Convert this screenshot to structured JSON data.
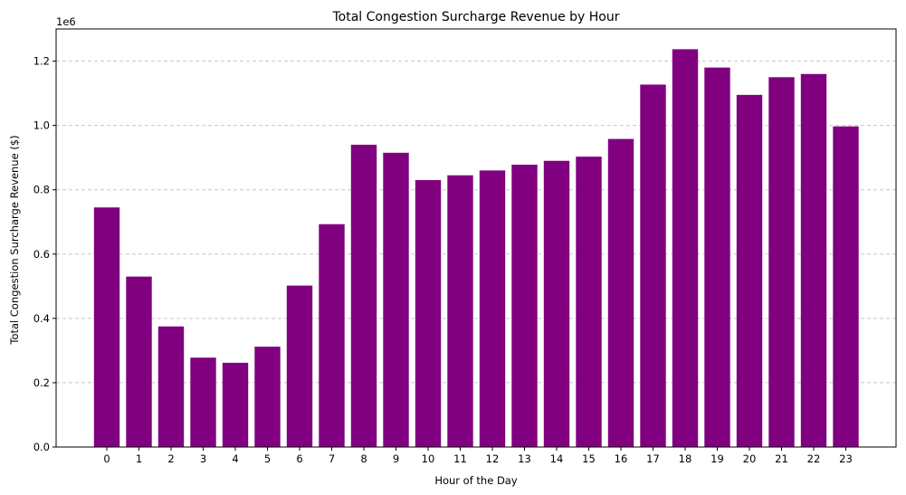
{
  "chart_data": {
    "type": "bar",
    "title": "Total Congestion Surcharge Revenue by Hour",
    "xlabel": "Hour of the Day",
    "ylabel": "Total Congestion Surcharge Revenue ($)",
    "y_offset_label": "1e6",
    "categories": [
      "0",
      "1",
      "2",
      "3",
      "4",
      "5",
      "6",
      "7",
      "8",
      "9",
      "10",
      "11",
      "12",
      "13",
      "14",
      "15",
      "16",
      "17",
      "18",
      "19",
      "20",
      "21",
      "22",
      "23"
    ],
    "values": [
      745000,
      530000,
      375000,
      278000,
      262000,
      312000,
      502000,
      693000,
      940000,
      915000,
      830000,
      845000,
      860000,
      878000,
      890000,
      903000,
      958000,
      1127000,
      1237000,
      1180000,
      1095000,
      1150000,
      1160000,
      997000
    ],
    "ylim": [
      0,
      1300000
    ],
    "yticks": [
      0,
      200000,
      400000,
      600000,
      800000,
      1000000,
      1200000
    ],
    "ytick_labels": [
      "0.0",
      "0.2",
      "0.4",
      "0.6",
      "0.8",
      "1.0",
      "1.2"
    ],
    "bar_color": "#800080",
    "grid": "y-dashed",
    "grid_color": "#c8c8c8"
  }
}
